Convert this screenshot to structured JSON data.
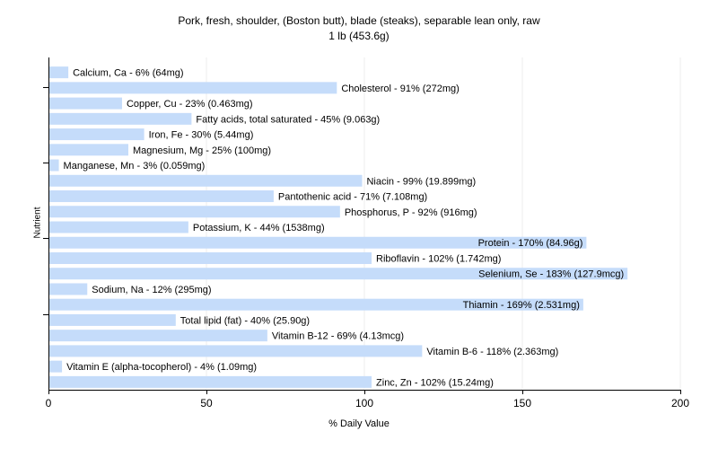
{
  "header": {
    "title_line1": "Pork, fresh, shoulder, (Boston butt), blade (steaks), separable lean only, raw",
    "title_line2": "1 lb (453.6g)"
  },
  "axes": {
    "xlabel": "% Daily Value",
    "ylabel": "Nutrient"
  },
  "colors": {
    "bar": "#c5dcfa",
    "axis": "#000000",
    "grid": "#ececec"
  },
  "chart_data": {
    "type": "bar",
    "orientation": "horizontal",
    "title": "Pork, fresh, shoulder, (Boston butt), blade (steaks), separable lean only, raw",
    "subtitle": "1 lb (453.6g)",
    "xlabel": "% Daily Value",
    "ylabel": "Nutrient",
    "xlim": [
      0,
      200
    ],
    "xticks": [
      0,
      50,
      100,
      150,
      200
    ],
    "grid": true,
    "categories": [
      "Calcium, Ca",
      "Cholesterol",
      "Copper, Cu",
      "Fatty acids, total saturated",
      "Iron, Fe",
      "Magnesium, Mg",
      "Manganese, Mn",
      "Niacin",
      "Pantothenic acid",
      "Phosphorus, P",
      "Potassium, K",
      "Protein",
      "Riboflavin",
      "Selenium, Se",
      "Sodium, Na",
      "Thiamin",
      "Total lipid (fat)",
      "Vitamin B-12",
      "Vitamin B-6",
      "Vitamin E (alpha-tocopherol)",
      "Zinc, Zn"
    ],
    "values": [
      6,
      91,
      23,
      45,
      30,
      25,
      3,
      99,
      71,
      92,
      44,
      170,
      102,
      183,
      12,
      169,
      40,
      69,
      118,
      4,
      102
    ],
    "labels": [
      "Calcium, Ca - 6% (64mg)",
      "Cholesterol - 91% (272mg)",
      "Copper, Cu - 23% (0.463mg)",
      "Fatty acids, total saturated - 45% (9.063g)",
      "Iron, Fe - 30% (5.44mg)",
      "Magnesium, Mg - 25% (100mg)",
      "Manganese, Mn - 3% (0.059mg)",
      "Niacin - 99% (19.899mg)",
      "Pantothenic acid - 71% (7.108mg)",
      "Phosphorus, P - 92% (916mg)",
      "Potassium, K - 44% (1538mg)",
      "Protein - 170% (84.96g)",
      "Riboflavin - 102% (1.742mg)",
      "Selenium, Se - 183% (127.9mcg)",
      "Sodium, Na - 12% (295mg)",
      "Thiamin - 169% (2.531mg)",
      "Total lipid (fat) - 40% (25.90g)",
      "Vitamin B-12 - 69% (4.13mcg)",
      "Vitamin B-6 - 118% (2.363mg)",
      "Vitamin E (alpha-tocopherol) - 4% (1.09mg)",
      "Zinc, Zn - 102% (15.24mg)"
    ]
  }
}
